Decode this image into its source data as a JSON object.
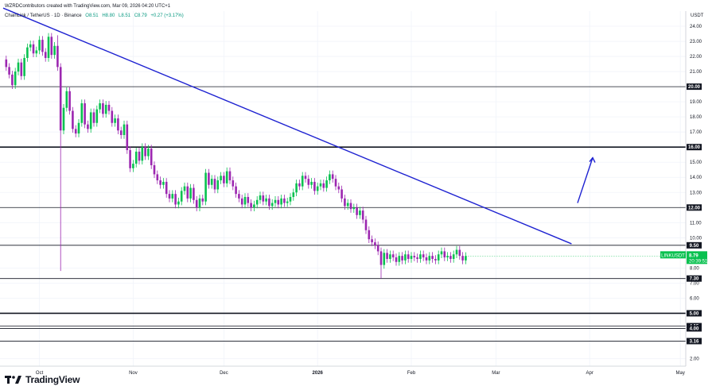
{
  "header": {
    "attribution": "WZRDContributors created with TradingView.com, Mar 09, 2026 04:20 UTC+1"
  },
  "symbol_line": {
    "name": "ChainLink / TetherUS · 1D · Binance",
    "open": "O8.51",
    "high": "H8.80",
    "low": "L8.51",
    "close": "C8.79",
    "change": "+0.27 (+3.17%)"
  },
  "price_axis": {
    "unit": "USDT"
  },
  "badges": {
    "symbol": "LINKUSDT",
    "price": "8.79",
    "countdown": "20:39:51"
  },
  "logo": {
    "text": "TradingView",
    "icon": "tradingview-logo-icon"
  },
  "colors": {
    "up": "#08c14f",
    "down": "#9c27b0",
    "trendline": "#1e22d1",
    "level_line": "#131722",
    "badge_green": "#08c14f"
  },
  "chart_data": {
    "type": "candlestick",
    "instrument": "LINKUSDT",
    "timeframe": "1D",
    "ylim": [
      1.5,
      25
    ],
    "y_ticks": [
      "24.00",
      "23.00",
      "22.00",
      "21.00",
      "19.00",
      "18.00",
      "17.00",
      "15.00",
      "14.00",
      "13.00",
      "11.00",
      "10.00",
      "8.00",
      "7.00",
      "6.00",
      "2.00"
    ],
    "x_ticks": [
      "Oct",
      "Nov",
      "Dec",
      "2026",
      "Feb",
      "Mar",
      "Apr",
      "May"
    ],
    "horizontal_levels": [
      {
        "value": 20.0,
        "label": "20.00",
        "weight": "thin"
      },
      {
        "value": 16.0,
        "label": "16.00",
        "weight": "bold"
      },
      {
        "value": 12.0,
        "label": "12.00",
        "weight": "thin"
      },
      {
        "value": 9.5,
        "label": "9.50",
        "weight": "thin"
      },
      {
        "value": 7.3,
        "label": "7.30",
        "weight": "thin"
      },
      {
        "value": 5.0,
        "label": "5.00",
        "weight": "bold"
      },
      {
        "value": 4.15,
        "label": "4.15",
        "weight": "thin"
      },
      {
        "value": 4.0,
        "label": "4.00",
        "weight": "thin"
      },
      {
        "value": 3.16,
        "label": "3.16",
        "weight": "thin"
      }
    ],
    "trendline": {
      "from": {
        "x": "2025-09-19",
        "y": 25.2
      },
      "to": {
        "x": "2026-03-26",
        "y": 9.6
      }
    },
    "arrow": {
      "from": {
        "x": "2026-03-28",
        "y": 12.3
      },
      "to": {
        "x": "2026-04-02",
        "y": 15.3
      }
    },
    "candles_start": "2025-09-20",
    "candles_close": [
      21.3,
      20.8,
      20.1,
      21.0,
      21.6,
      20.7,
      21.9,
      22.6,
      22.8,
      22.2,
      22.4,
      23.1,
      22.3,
      21.9,
      23.3,
      22.1,
      22.7,
      21.3,
      17.1,
      18.6,
      19.7,
      18.4,
      17.2,
      16.9,
      17.6,
      18.9,
      17.5,
      17.2,
      18.3,
      17.6,
      18.5,
      18.9,
      18.2,
      18.8,
      18.4,
      17.6,
      17.9,
      17.1,
      16.8,
      17.5,
      15.8,
      14.6,
      14.9,
      15.7,
      15.1,
      16.0,
      15.4,
      15.9,
      14.8,
      14.2,
      13.8,
      13.5,
      13.7,
      12.9,
      12.6,
      12.9,
      12.2,
      12.4,
      13.1,
      13.4,
      12.6,
      13.3,
      12.5,
      12.0,
      12.6,
      12.4,
      14.3,
      13.5,
      13.9,
      13.2,
      13.8,
      14.1,
      13.6,
      14.4,
      13.8,
      13.4,
      12.9,
      12.6,
      12.2,
      12.7,
      12.3,
      12.0,
      12.2,
      12.5,
      12.8,
      12.4,
      12.6,
      12.1,
      12.3,
      12.5,
      12.2,
      12.6,
      12.3,
      12.4,
      12.7,
      13.0,
      13.6,
      13.4,
      14.1,
      13.9,
      13.5,
      13.7,
      13.1,
      13.4,
      13.6,
      13.3,
      13.8,
      14.2,
      13.9,
      13.4,
      13.2,
      12.6,
      12.1,
      12.3,
      11.9,
      12.0,
      11.5,
      11.8,
      11.2,
      10.5,
      9.9,
      9.7,
      9.5,
      9.1,
      8.2,
      9.0,
      8.6,
      8.9,
      8.7,
      8.4,
      8.8,
      8.5,
      8.9,
      8.6,
      8.8,
      8.7,
      8.6,
      8.9,
      8.7,
      8.5,
      8.8,
      8.6,
      8.5,
      8.9,
      9.1,
      8.7,
      8.8,
      8.6,
      8.9,
      9.2,
      8.8,
      8.5,
      8.79
    ]
  }
}
